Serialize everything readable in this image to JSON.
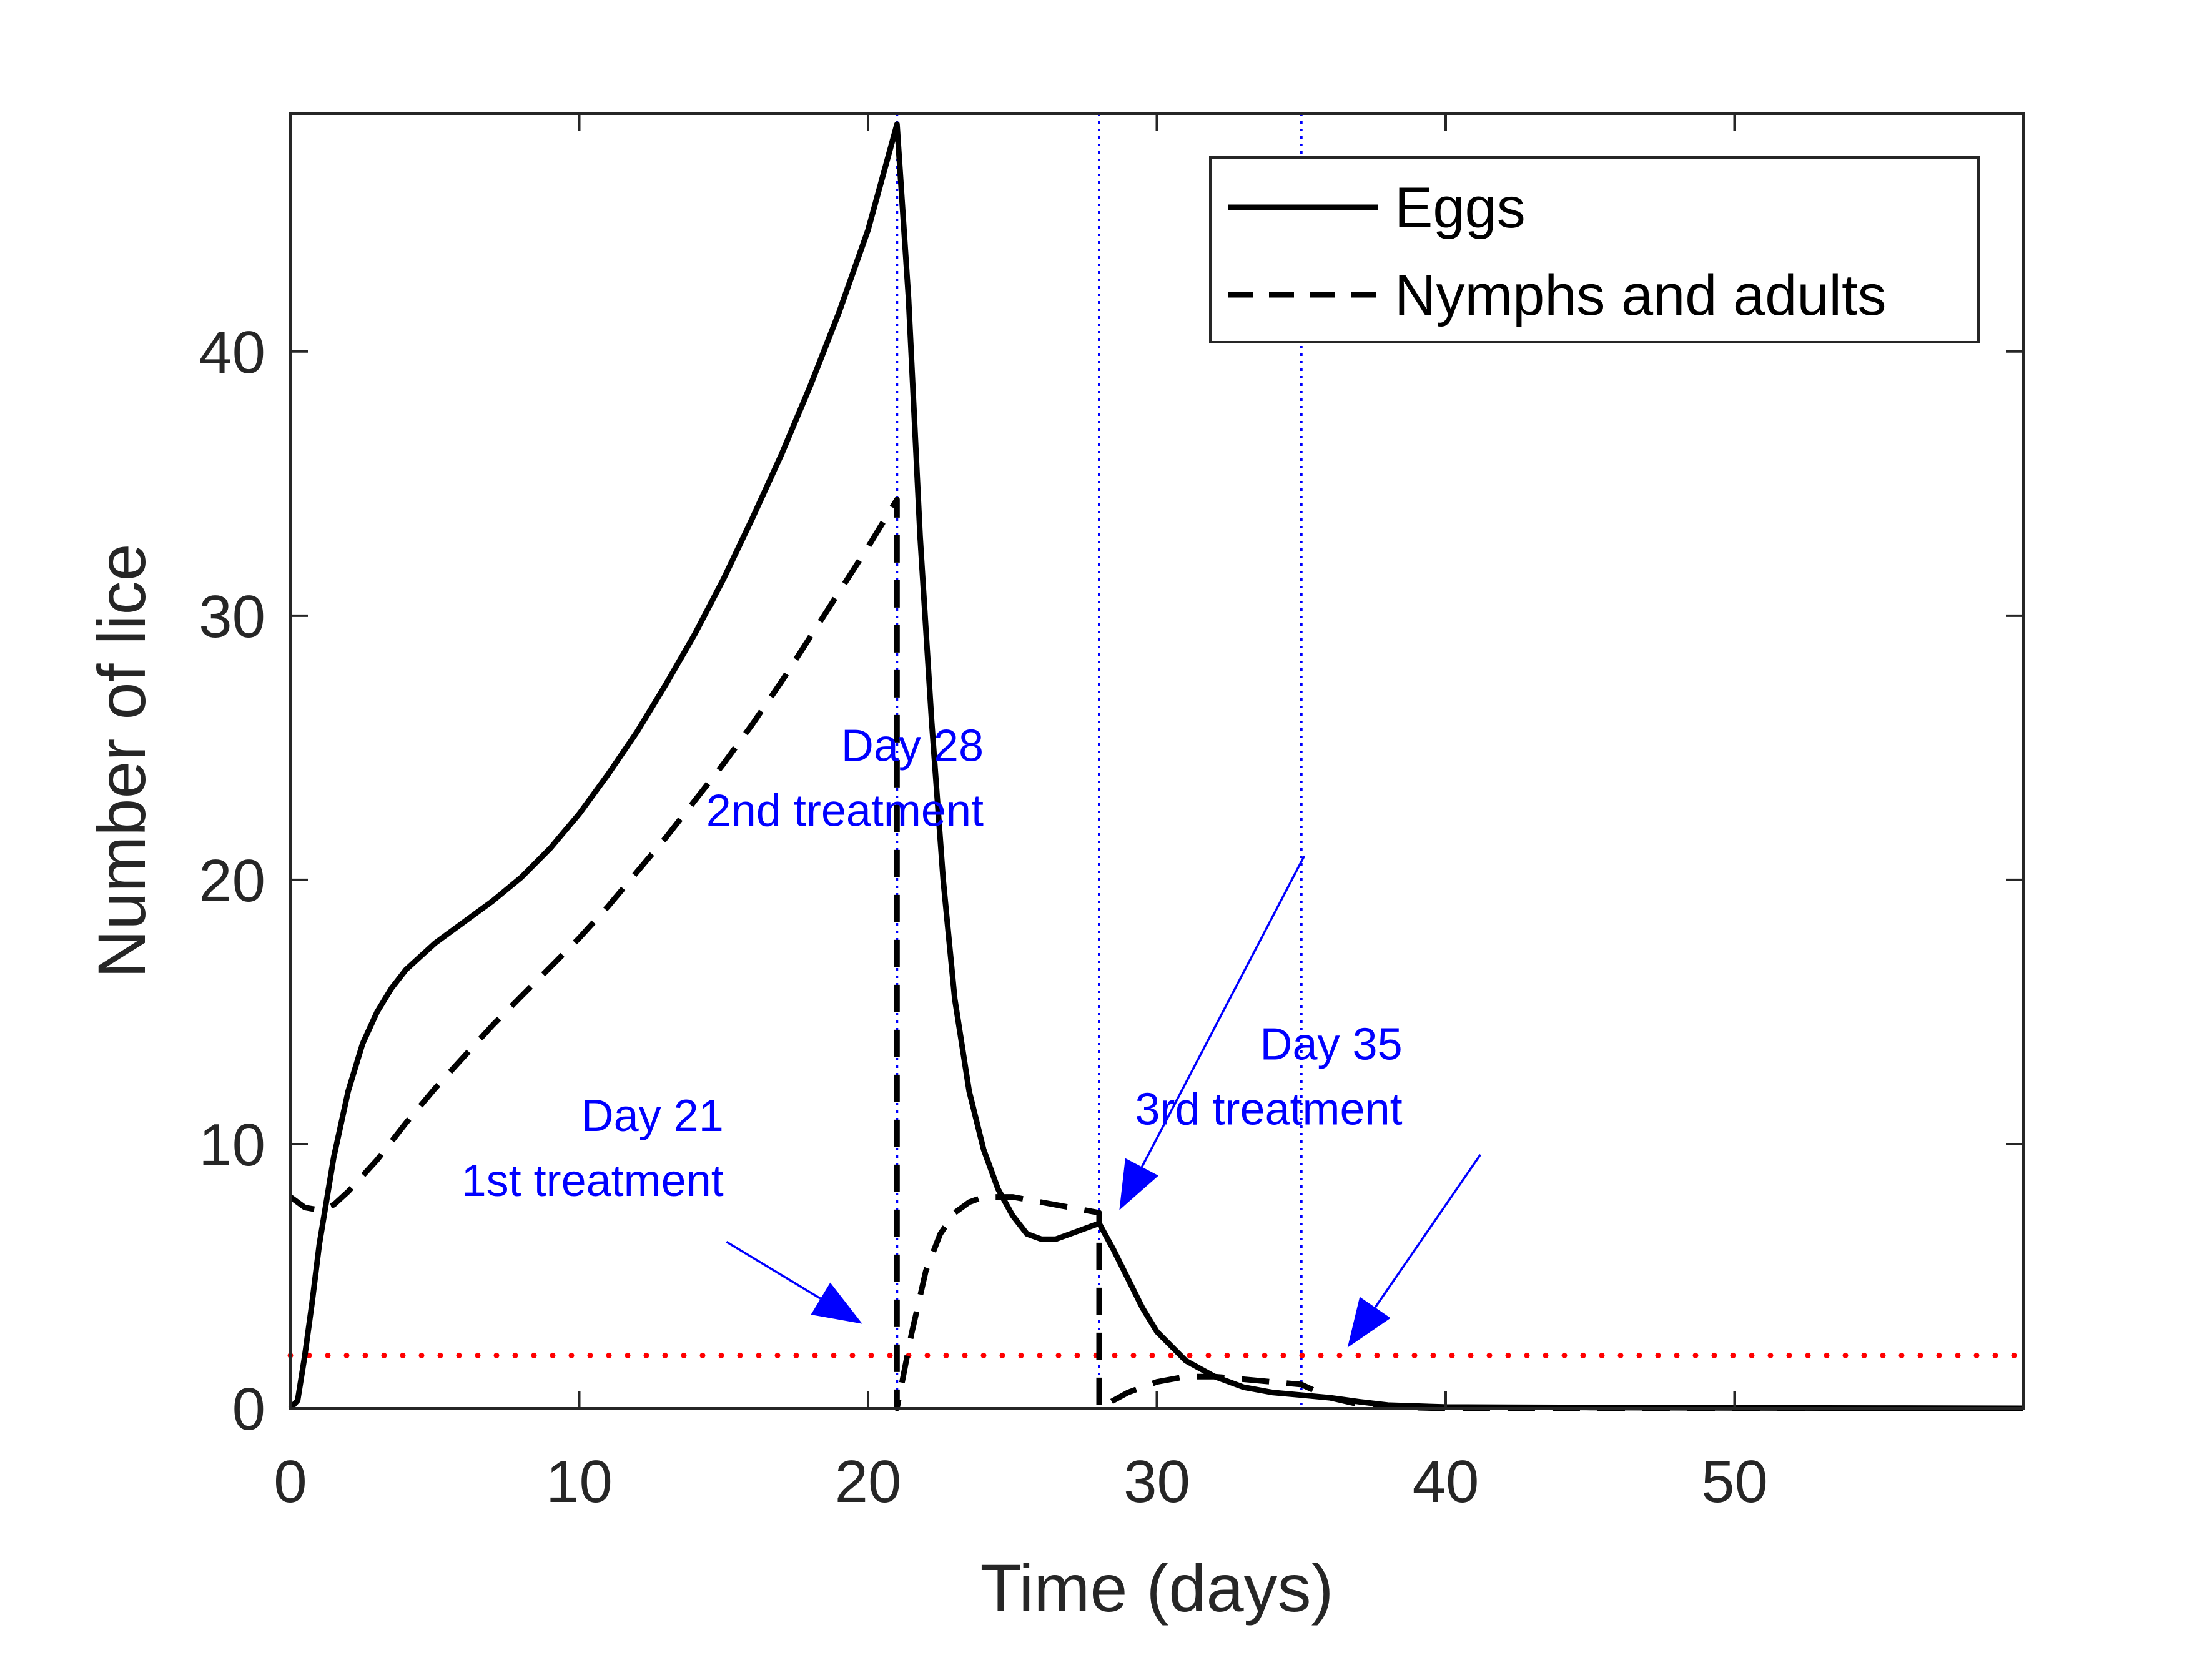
{
  "chart_data": {
    "type": "line",
    "title": "",
    "xlabel": "Time (days)",
    "ylabel": "Number of lice",
    "xlim": [
      0,
      60
    ],
    "ylim": [
      0,
      49
    ],
    "xticks": [
      0,
      10,
      20,
      30,
      40,
      50
    ],
    "yticks": [
      0,
      10,
      20,
      30,
      40
    ],
    "xtick_labels": [
      "0",
      "10",
      "20",
      "30",
      "40",
      "50"
    ],
    "ytick_labels": [
      "0",
      "10",
      "20",
      "30",
      "40"
    ],
    "grid": false,
    "legend_position": "top-right",
    "series": [
      {
        "name": "Eggs",
        "style": "solid",
        "color": "#000000",
        "x": [
          0,
          0.25,
          0.5,
          0.75,
          1,
          1.5,
          2,
          2.5,
          3,
          3.5,
          4,
          4.5,
          5,
          6,
          7,
          8,
          9,
          10,
          11,
          12,
          13,
          14,
          15,
          16,
          17,
          18,
          19,
          20,
          21,
          21.4,
          21.8,
          22.2,
          22.6,
          23,
          23.5,
          24,
          24.5,
          25,
          25.5,
          26,
          26.5,
          27,
          27.5,
          28,
          28.5,
          29,
          29.5,
          30,
          31,
          32,
          33,
          34,
          35,
          36,
          37,
          38,
          40,
          45,
          50,
          55,
          60
        ],
        "y": [
          0,
          0.3,
          2,
          4,
          6.2,
          9.5,
          12,
          13.8,
          15,
          15.9,
          16.6,
          17.1,
          17.6,
          18.4,
          19.2,
          20.1,
          21.2,
          22.5,
          24,
          25.6,
          27.4,
          29.3,
          31.4,
          33.7,
          36.1,
          38.7,
          41.5,
          44.6,
          48.6,
          42,
          33,
          26,
          20,
          15.5,
          12,
          9.8,
          8.3,
          7.3,
          6.6,
          6.4,
          6.4,
          6.6,
          6.8,
          7,
          6,
          4.9,
          3.8,
          2.9,
          1.8,
          1.2,
          0.8,
          0.6,
          0.5,
          0.4,
          0.25,
          0.12,
          0.05,
          0.03,
          0.02,
          0.01,
          0
        ]
      },
      {
        "name": "Nymphs and adults",
        "style": "dashed",
        "color": "#000000",
        "x": [
          0,
          0.5,
          1,
          1.5,
          2,
          3,
          4,
          5,
          6,
          7,
          8,
          9,
          10,
          11,
          12,
          13,
          14,
          15,
          16,
          17,
          18,
          19,
          20,
          21,
          21,
          21.5,
          22,
          22.5,
          23,
          23.5,
          24,
          24.5,
          25,
          26,
          27,
          28,
          28,
          28.5,
          29,
          30,
          31,
          32,
          33,
          34,
          35,
          36,
          37,
          38,
          40,
          45,
          50,
          55,
          60
        ],
        "y": [
          8,
          7.6,
          7.5,
          7.7,
          8.2,
          9.4,
          10.8,
          12.1,
          13.3,
          14.5,
          15.6,
          16.7,
          17.8,
          19,
          20.3,
          21.6,
          23,
          24.4,
          25.9,
          27.5,
          29.2,
          30.9,
          32.6,
          34.4,
          0,
          2.8,
          5.2,
          6.6,
          7.4,
          7.8,
          8,
          8,
          8,
          7.8,
          7.6,
          7.4,
          0,
          0.3,
          0.6,
          1,
          1.2,
          1.2,
          1.1,
          1,
          0.9,
          0.4,
          0.15,
          0.05,
          0,
          0,
          0,
          0,
          0
        ]
      }
    ],
    "threshold": {
      "y": 2,
      "style": "dotted",
      "color": "#ff0000"
    },
    "treatment_lines": [
      {
        "x": 21,
        "color": "#0000ff",
        "style": "dotted"
      },
      {
        "x": 28,
        "color": "#0000ff",
        "style": "dotted"
      },
      {
        "x": 35,
        "color": "#0000ff",
        "style": "dotted"
      }
    ],
    "annotations": [
      {
        "line1": "Day 21",
        "line2": "1st treatment",
        "text_x": 15,
        "text_y": 10.5,
        "arrow_from": [
          15.1,
          6.3
        ],
        "arrow_to": [
          19.8,
          3.2
        ],
        "color": "#0000ff"
      },
      {
        "line1": "Day 28",
        "line2": "2nd treatment",
        "text_x": 24,
        "text_y": 24.5,
        "arrow_from": [
          35.1,
          20.9
        ],
        "arrow_to": [
          28.7,
          7.5
        ],
        "color": "#0000ff"
      },
      {
        "line1": "Day 35",
        "line2": "3rd treatment",
        "text_x": 38.5,
        "text_y": 13.2,
        "arrow_from": [
          41.2,
          9.6
        ],
        "arrow_to": [
          36.6,
          2.3
        ],
        "color": "#0000ff"
      }
    ]
  }
}
